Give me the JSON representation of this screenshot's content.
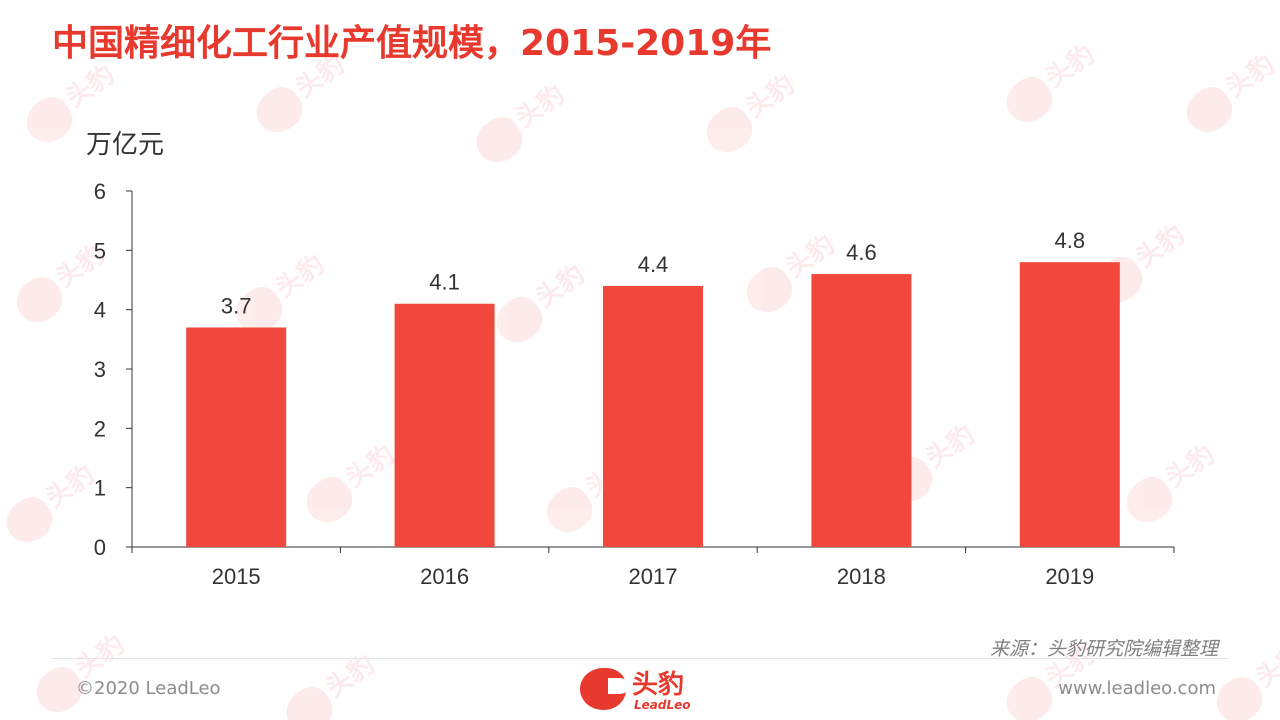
{
  "title": "中国精细化工行业产值规模，2015-2019年",
  "unit_label": "万亿元",
  "source_text": "来源：头豹研究院编辑整理",
  "footer": {
    "copyright": "©2020 LeadLeo",
    "website": "www.leadleo.com"
  },
  "logo": {
    "name": "头豹",
    "sub": "LeadLeo"
  },
  "watermark_text": "头豹",
  "colors": {
    "accent": "#e8392e",
    "bar": "#f0483c",
    "axis": "#333333"
  },
  "chart_data": {
    "type": "bar",
    "title": "中国精细化工行业产值规模，2015-2019年",
    "ylabel": "万亿元",
    "xlabel": "",
    "categories": [
      "2015",
      "2016",
      "2017",
      "2018",
      "2019"
    ],
    "values": [
      3.7,
      4.1,
      4.4,
      4.6,
      4.8
    ],
    "value_labels": [
      "3.7",
      "4.1",
      "4.4",
      "4.6",
      "4.8"
    ],
    "ylim": [
      0,
      6
    ],
    "yticks": [
      "0",
      "1",
      "2",
      "3",
      "4",
      "5",
      "6"
    ],
    "grid": false,
    "legend": "none"
  }
}
